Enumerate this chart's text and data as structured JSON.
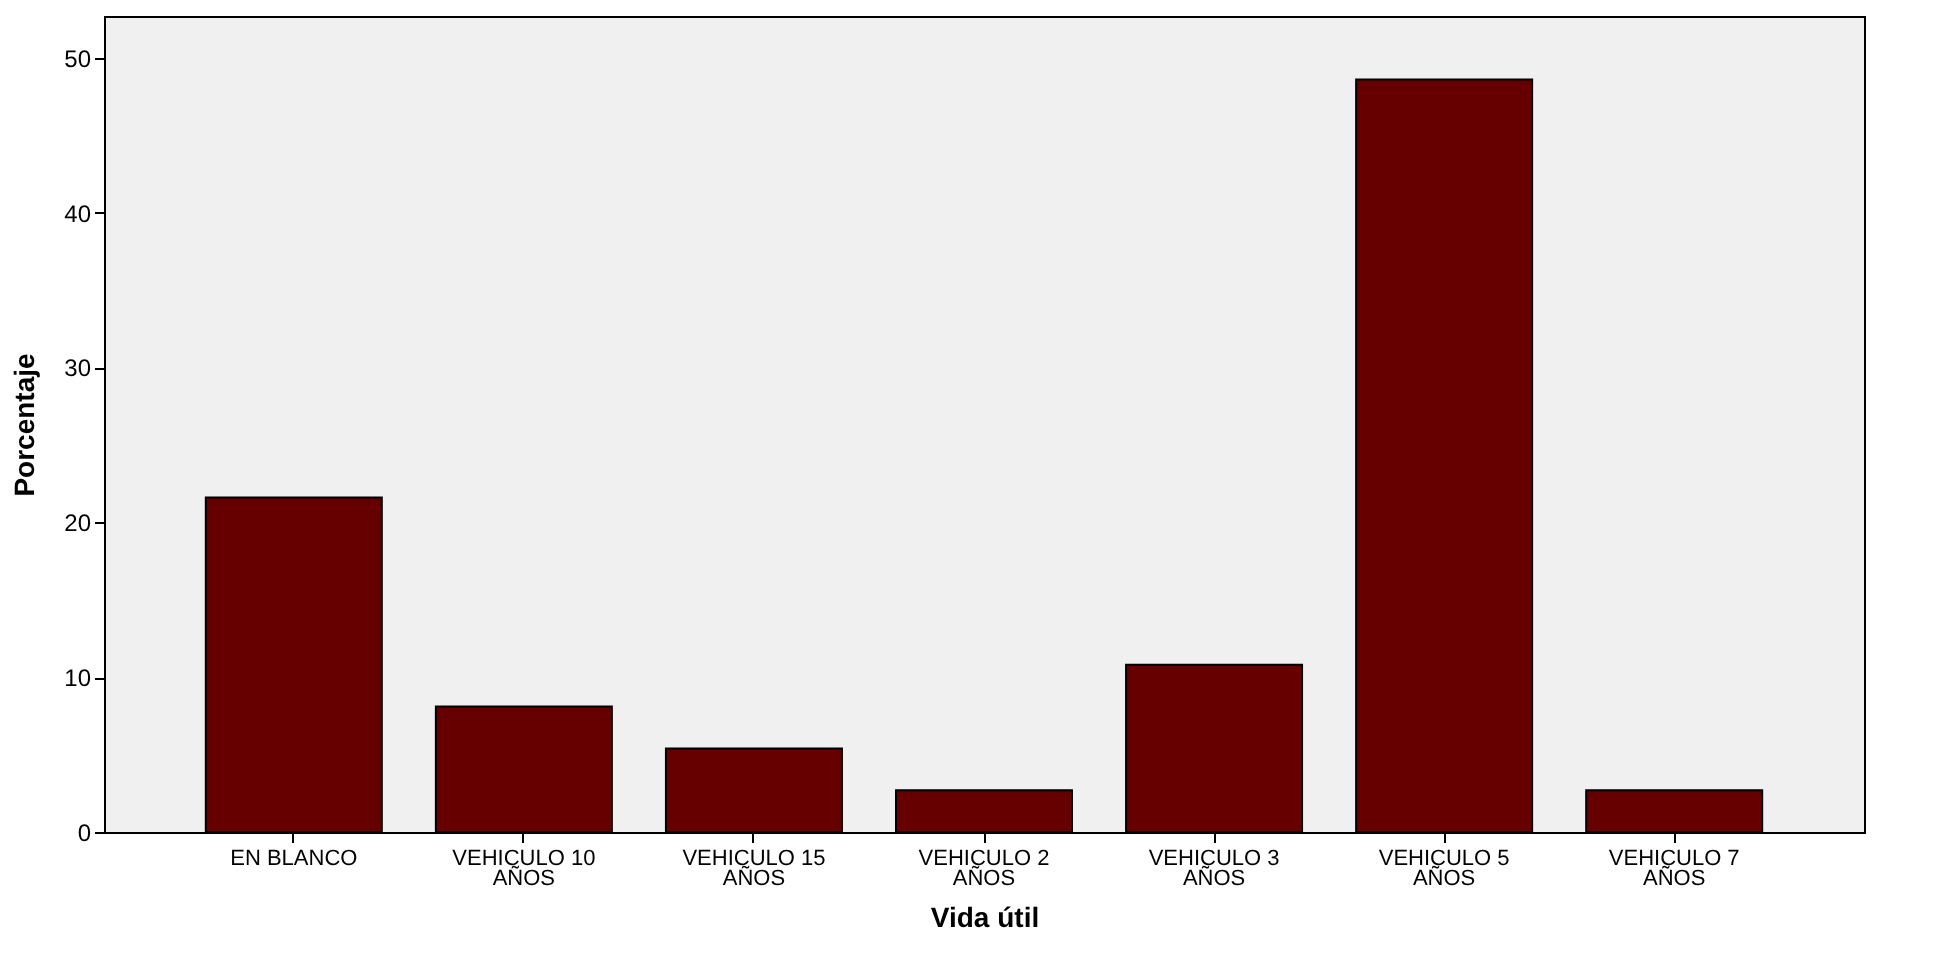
{
  "chart_data": {
    "type": "bar",
    "xlabel": "Vida útil",
    "ylabel": "Porcentaje",
    "categories": [
      "EN BLANCO",
      "VEHICULO 10 AÑOS",
      "VEHICULO 15 AÑOS",
      "VEHICULO 2 AÑOS",
      "VEHICULO 3 AÑOS",
      "VEHICULO 5 AÑOS",
      "VEHICULO 7 AÑOS"
    ],
    "values": [
      21.6,
      8.1,
      5.4,
      2.7,
      10.8,
      48.6,
      2.7
    ],
    "color": "#660000",
    "ylim": [
      0,
      52.7
    ],
    "yticks": [
      0,
      10,
      20,
      30,
      40,
      50
    ],
    "grid": false
  }
}
